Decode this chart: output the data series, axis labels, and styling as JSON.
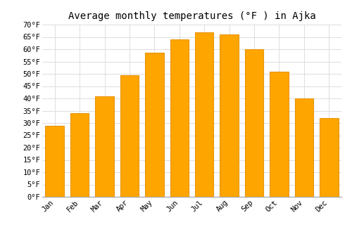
{
  "title": "Average monthly temperatures (°F ) in Ajka",
  "months": [
    "Jan",
    "Feb",
    "Mar",
    "Apr",
    "May",
    "Jun",
    "Jul",
    "Aug",
    "Sep",
    "Oct",
    "Nov",
    "Dec"
  ],
  "values": [
    29,
    34,
    41,
    49.5,
    58.5,
    64,
    67,
    66,
    60,
    51,
    40,
    32
  ],
  "bar_color": "#FFA500",
  "bar_edge_color": "#E8950A",
  "ylim": [
    0,
    70
  ],
  "yticks": [
    0,
    5,
    10,
    15,
    20,
    25,
    30,
    35,
    40,
    45,
    50,
    55,
    60,
    65,
    70
  ],
  "ylabel_suffix": "°F",
  "bg_color": "#ffffff",
  "grid_color": "#dddddd",
  "title_fontsize": 10,
  "tick_fontsize": 7.5
}
